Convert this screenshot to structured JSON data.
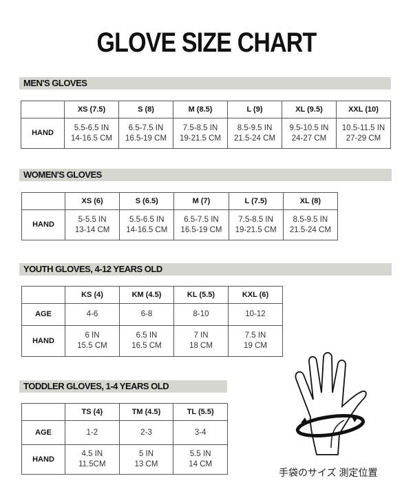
{
  "title": "GLOVE SIZE CHART",
  "sections": [
    {
      "heading": "MEN'S GLOVES",
      "columns": [
        "XS (7.5)",
        "S (8)",
        "M (8.5)",
        "L (9)",
        "XL (9.5)",
        "XXL (10)"
      ],
      "rows": [
        {
          "label": "HAND",
          "cells": [
            [
              "5.5-6.5 IN",
              "14-16.5 CM"
            ],
            [
              "6.5-7.5 IN",
              "16.5-19 CM"
            ],
            [
              "7.5-8.5 IN",
              "19-21.5 CM"
            ],
            [
              "8.5-9.5 IN",
              "21.5-24 CM"
            ],
            [
              "9.5-10.5 IN",
              "24-27 CM"
            ],
            [
              "10.5-11.5 IN",
              "27-29 CM"
            ]
          ]
        }
      ]
    },
    {
      "heading": "WOMEN'S GLOVES",
      "columns": [
        "XS (6)",
        "S (6.5)",
        "M (7)",
        "L (7.5)",
        "XL (8)"
      ],
      "rows": [
        {
          "label": "HAND",
          "cells": [
            [
              "5-5.5 IN",
              "13-14 CM"
            ],
            [
              "5.5-6.5 IN",
              "14-16.5 CM"
            ],
            [
              "6.5-7.5 IN",
              "16.5-19 CM"
            ],
            [
              "7.5-8.5 IN",
              "19-21.5 CM"
            ],
            [
              "8.5-9.5 IN",
              "21.5-24 CM"
            ]
          ]
        }
      ]
    },
    {
      "heading": "YOUTH GLOVES, 4-12 YEARS OLD",
      "columns": [
        "KS (4)",
        "KM (4.5)",
        "KL (5.5)",
        "KXL (6)"
      ],
      "rows": [
        {
          "label": "AGE",
          "cells": [
            [
              "4-6"
            ],
            [
              "6-8"
            ],
            [
              "8-10"
            ],
            [
              "10-12"
            ]
          ]
        },
        {
          "label": "HAND",
          "cells": [
            [
              "6 IN",
              "15.5 CM"
            ],
            [
              "6.5 IN",
              "16.5 CM"
            ],
            [
              "7 IN",
              "18 CM"
            ],
            [
              "7.5 IN",
              "19 CM"
            ]
          ]
        }
      ]
    },
    {
      "heading": "TODDLER GLOVES, 1-4 YEARS OLD",
      "columns": [
        "TS (4)",
        "TM (4.5)",
        "TL (5.5)"
      ],
      "rows": [
        {
          "label": "AGE",
          "cells": [
            [
              "1-2"
            ],
            [
              "2-3"
            ],
            [
              "3-4"
            ]
          ]
        },
        {
          "label": "HAND",
          "cells": [
            [
              "4.5 IN",
              "11.5CM"
            ],
            [
              "5 IN",
              "13 CM"
            ],
            [
              "5.5 IN",
              "14 CM"
            ]
          ]
        }
      ]
    }
  ],
  "illustration": {
    "icon": "hand-measurement-icon",
    "caption": "手袋のサイズ 測定位置"
  }
}
